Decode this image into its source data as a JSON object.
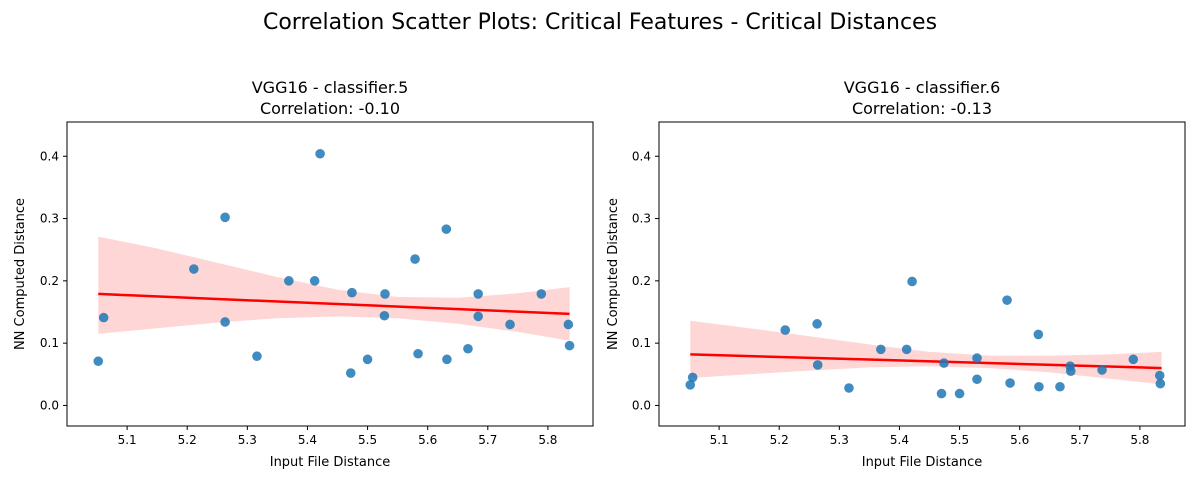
{
  "figure": {
    "title": "Correlation Scatter Plots: Critical Features - Critical Distances"
  },
  "chart_data": [
    {
      "type": "scatter",
      "title_line1": "VGG16 - classifier.5",
      "title_line2": "Correlation: -0.10",
      "xlabel": "Input File Distance",
      "ylabel": "NN Computed Distance",
      "xlim": [
        5.0,
        5.875
      ],
      "ylim": [
        -0.033,
        0.455
      ],
      "xticks": [
        "5.1",
        "5.2",
        "5.3",
        "5.4",
        "5.5",
        "5.6",
        "5.7",
        "5.8"
      ],
      "yticks": [
        "0.0",
        "0.1",
        "0.2",
        "0.3",
        "0.4"
      ],
      "point_color": "#1f77b4",
      "line_color": "#ff0000",
      "band_color": "#ffd6d6",
      "points": {
        "x": [
          5.052,
          5.061,
          5.211,
          5.263,
          5.263,
          5.316,
          5.369,
          5.412,
          5.421,
          5.472,
          5.474,
          5.5,
          5.528,
          5.529,
          5.579,
          5.584,
          5.631,
          5.632,
          5.667,
          5.684,
          5.684,
          5.737,
          5.789,
          5.834,
          5.836
        ],
        "y": [
          0.071,
          0.141,
          0.219,
          0.302,
          0.134,
          0.079,
          0.2,
          0.2,
          0.404,
          0.052,
          0.181,
          0.074,
          0.144,
          0.179,
          0.235,
          0.083,
          0.283,
          0.074,
          0.091,
          0.179,
          0.143,
          0.13,
          0.179,
          0.13,
          0.096
        ]
      },
      "regression": {
        "x": [
          5.052,
          5.836
        ],
        "y": [
          0.179,
          0.147
        ]
      },
      "confidence_band": {
        "x": [
          5.052,
          5.15,
          5.25,
          5.35,
          5.45,
          5.55,
          5.65,
          5.75,
          5.836
        ],
        "upper": [
          0.271,
          0.252,
          0.229,
          0.206,
          0.186,
          0.174,
          0.173,
          0.18,
          0.19
        ],
        "lower": [
          0.115,
          0.124,
          0.133,
          0.14,
          0.143,
          0.14,
          0.131,
          0.118,
          0.104
        ]
      }
    },
    {
      "type": "scatter",
      "title_line1": "VGG16 - classifier.6",
      "title_line2": "Correlation: -0.13",
      "xlabel": "Input File Distance",
      "ylabel": "NN Computed Distance",
      "xlim": [
        5.0,
        5.875
      ],
      "ylim": [
        -0.033,
        0.455
      ],
      "xticks": [
        "5.1",
        "5.2",
        "5.3",
        "5.4",
        "5.5",
        "5.6",
        "5.7",
        "5.8"
      ],
      "yticks": [
        "0.0",
        "0.1",
        "0.2",
        "0.3",
        "0.4"
      ],
      "point_color": "#1f77b4",
      "line_color": "#ff0000",
      "band_color": "#ffd6d6",
      "points": {
        "x": [
          5.052,
          5.056,
          5.21,
          5.263,
          5.264,
          5.316,
          5.369,
          5.412,
          5.421,
          5.47,
          5.474,
          5.5,
          5.529,
          5.529,
          5.579,
          5.584,
          5.631,
          5.632,
          5.667,
          5.684,
          5.685,
          5.737,
          5.789,
          5.833,
          5.834
        ],
        "y": [
          0.033,
          0.045,
          0.121,
          0.131,
          0.065,
          0.028,
          0.09,
          0.09,
          0.199,
          0.019,
          0.068,
          0.019,
          0.076,
          0.042,
          0.169,
          0.036,
          0.114,
          0.03,
          0.03,
          0.063,
          0.055,
          0.057,
          0.074,
          0.048,
          0.035
        ]
      },
      "regression": {
        "x": [
          5.052,
          5.836
        ],
        "y": [
          0.082,
          0.06
        ]
      },
      "confidence_band": {
        "x": [
          5.052,
          5.15,
          5.25,
          5.35,
          5.45,
          5.55,
          5.65,
          5.75,
          5.836
        ],
        "upper": [
          0.136,
          0.124,
          0.111,
          0.098,
          0.086,
          0.08,
          0.08,
          0.082,
          0.086
        ],
        "lower": [
          0.044,
          0.05,
          0.056,
          0.061,
          0.063,
          0.06,
          0.053,
          0.043,
          0.034
        ]
      }
    }
  ]
}
